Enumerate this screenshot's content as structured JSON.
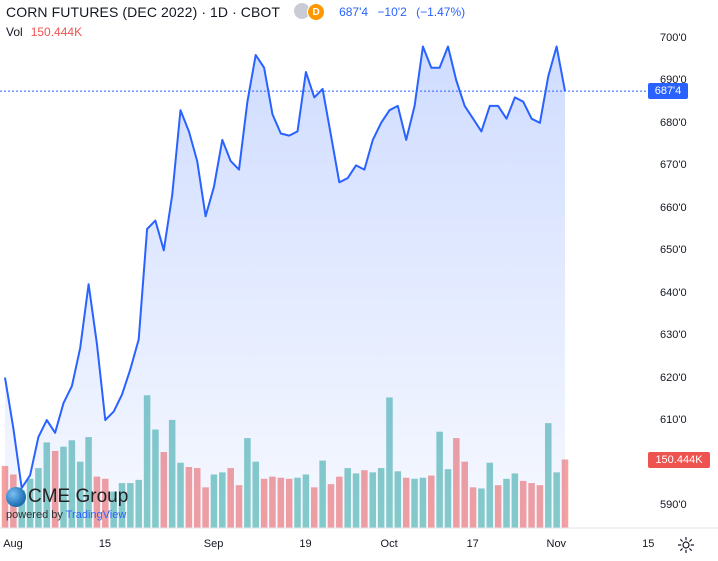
{
  "header": {
    "title": "CORN FUTURES (DEC 2022)",
    "interval": "1D",
    "exchange": "CBOT",
    "separator": "·",
    "status_badge": "D",
    "last": "687'4",
    "change": "−10'2",
    "change_pct": "(−1.47%)"
  },
  "volume_label": {
    "label": "Vol",
    "value": "150.444K"
  },
  "branding": {
    "logo": "CME Group",
    "powered_by": "powered by",
    "platform": "TradingView"
  },
  "colors": {
    "line": "#2962ff",
    "vol_up": "#26a69a",
    "vol_down": "#ef5350",
    "last_price_tag": "#2962ff"
  },
  "chart_data": {
    "type": "line",
    "ylim": [
      584,
      705
    ],
    "x_ticks": [
      "Aug",
      "15",
      "Sep",
      "19",
      "Oct",
      "17",
      "Nov",
      "15"
    ],
    "y_ticks": [
      "700'0",
      "690'0",
      "680'0",
      "670'0",
      "660'0",
      "650'0",
      "640'0",
      "630'0",
      "620'0",
      "610'0",
      "600'0",
      "590'0"
    ],
    "y_tick_values": [
      700,
      690,
      680,
      670,
      660,
      650,
      640,
      630,
      620,
      610,
      600,
      590
    ],
    "last_price": 687.5,
    "last_price_label": "687'4",
    "last_volume_label": "150.444K",
    "series": [
      {
        "values": [
          620,
          608,
          594,
          597,
          606,
          610,
          607,
          614,
          618,
          627,
          642,
          628,
          610,
          612,
          616,
          622,
          629,
          655,
          657,
          650,
          663,
          683,
          678,
          671,
          658,
          665,
          676,
          671,
          669,
          685,
          696,
          693,
          682,
          677.5,
          677,
          678,
          692,
          686,
          688,
          677,
          666,
          667,
          670,
          669,
          676,
          680,
          683,
          684,
          676,
          684,
          698,
          693,
          693,
          698,
          690,
          684,
          681,
          678,
          684,
          684,
          681,
          686,
          685,
          681,
          680,
          691,
          698,
          687.5
        ]
      },
      {
        "name": "Vol",
        "values": [
          58,
          50,
          35,
          46,
          56,
          80,
          72,
          76,
          82,
          62,
          85,
          48,
          46,
          34,
          42,
          42,
          45,
          124,
          92,
          71,
          101,
          61,
          57,
          56,
          38,
          50,
          52,
          56,
          40,
          84,
          62,
          46,
          48,
          47,
          46,
          47,
          50,
          38,
          63,
          41,
          48,
          56,
          51,
          54,
          52,
          56,
          122,
          53,
          47,
          46,
          47,
          49,
          90,
          55,
          84,
          62,
          38,
          37,
          61,
          40,
          46,
          51,
          44,
          42,
          40,
          98,
          52,
          64
        ]
      }
    ],
    "volume_direction": [
      -1,
      -1,
      1,
      1,
      1,
      1,
      -1,
      1,
      1,
      1,
      1,
      -1,
      -1,
      1,
      1,
      1,
      1,
      1,
      1,
      -1,
      1,
      1,
      -1,
      -1,
      -1,
      1,
      1,
      -1,
      -1,
      1,
      1,
      -1,
      -1,
      -1,
      -1,
      1,
      1,
      -1,
      1,
      -1,
      -1,
      1,
      1,
      -1,
      1,
      1,
      1,
      1,
      -1,
      1,
      1,
      -1,
      1,
      1,
      -1,
      -1,
      -1,
      1,
      1,
      -1,
      1,
      1,
      -1,
      -1,
      -1,
      1,
      1,
      -1
    ]
  }
}
